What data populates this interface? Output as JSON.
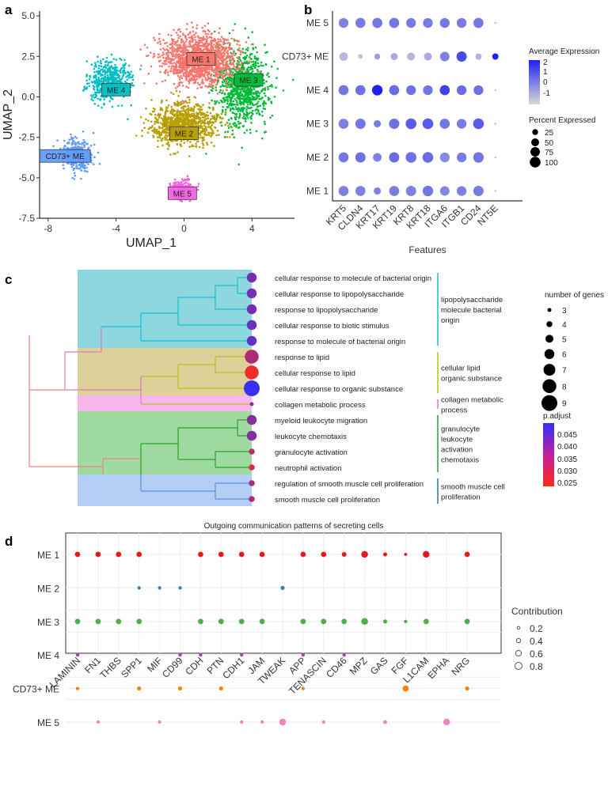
{
  "panel_letters": [
    "a",
    "b",
    "c",
    "d"
  ],
  "colors": {
    "me1": "#f8766d",
    "me2": "#b79f00",
    "me3": "#00ba38",
    "me4": "#00bfc4",
    "cd73": "#619cff",
    "me5": "#f564e3",
    "d_me1": "#e41a1c",
    "d_me2": "#377eb8",
    "d_me3": "#4daf4a",
    "d_me4": "#984ea3",
    "d_cd73": "#ff7f00",
    "d_me5": "#f781bf"
  },
  "chart_data": [
    {
      "id": "a",
      "type": "scatter",
      "title": "",
      "xlabel": "UMAP_1",
      "ylabel": "UMAP_2",
      "xlim": [
        -8.5,
        6.5
      ],
      "ylim": [
        -7.5,
        5.3
      ],
      "xticks": [
        "-8",
        "-4",
        "0",
        "4"
      ],
      "yticks": [
        "5.0",
        "2.5",
        "0.0",
        "-2.5",
        "-5.0",
        "-7.5"
      ],
      "clusters": [
        {
          "name": "ME 1",
          "label_pos": [
            1.0,
            2.3
          ],
          "center": [
            0.9,
            2.3
          ]
        },
        {
          "name": "ME 2",
          "label_pos": [
            0.0,
            -2.3
          ],
          "center": [
            0.0,
            -1.8
          ]
        },
        {
          "name": "ME 3",
          "label_pos": [
            3.8,
            1.0
          ],
          "center": [
            3.4,
            0.5
          ]
        },
        {
          "name": "ME 4",
          "label_pos": [
            -4.0,
            0.4
          ],
          "center": [
            -4.5,
            1.0
          ]
        },
        {
          "name": "CD73+ ME",
          "label_pos": [
            -7.0,
            -3.7
          ],
          "center": [
            -6.2,
            -3.6
          ]
        },
        {
          "name": "ME 5",
          "label_pos": [
            -0.1,
            -6.0
          ],
          "center": [
            -0.1,
            -5.7
          ]
        }
      ]
    },
    {
      "id": "b",
      "type": "dotplot",
      "xlabel": "Features",
      "features": [
        "KRT5",
        "CLDN4",
        "KRT17",
        "KRT19",
        "KRT8",
        "KRT18",
        "ITGA6",
        "ITGB1",
        "CD24",
        "NT5E"
      ],
      "groups": [
        "ME 5",
        "CD73+ ME",
        "ME 4",
        "ME 3",
        "ME 2",
        "ME 1"
      ],
      "avg_expression": [
        [
          0.2,
          0.3,
          0.4,
          0.4,
          0.3,
          0.3,
          0.4,
          0.3,
          0.4,
          -1.0
        ],
        [
          -0.9,
          -1.1,
          -0.4,
          -0.6,
          -0.8,
          -0.6,
          0.2,
          1.2,
          -0.8,
          2.0
        ],
        [
          0.4,
          0.5,
          2.0,
          0.6,
          0.5,
          0.4,
          1.4,
          0.6,
          0.5,
          -1.0
        ],
        [
          0.2,
          0.4,
          0.3,
          0.5,
          0.9,
          0.9,
          0.4,
          0.3,
          0.9,
          -1.0
        ],
        [
          0.4,
          0.5,
          0.2,
          0.6,
          0.5,
          0.6,
          0.0,
          0.3,
          0.4,
          -1.0
        ],
        [
          0.2,
          0.2,
          0.2,
          0.3,
          0.2,
          0.4,
          0.1,
          0.2,
          0.3,
          -1.0
        ]
      ],
      "pct_expressed": [
        [
          80,
          85,
          85,
          85,
          80,
          80,
          80,
          80,
          85,
          1
        ],
        [
          60,
          15,
          25,
          40,
          50,
          50,
          75,
          90,
          30,
          30
        ],
        [
          85,
          85,
          95,
          85,
          80,
          80,
          85,
          80,
          80,
          1
        ],
        [
          85,
          90,
          40,
          90,
          100,
          100,
          85,
          80,
          100,
          1
        ],
        [
          85,
          90,
          60,
          90,
          100,
          100,
          80,
          80,
          95,
          1
        ],
        [
          85,
          85,
          40,
          85,
          90,
          95,
          75,
          80,
          90,
          1
        ]
      ],
      "legend_expression_title": "Average Expression",
      "legend_expression_ticks": [
        "2",
        "1",
        "0",
        "-1"
      ],
      "legend_percent_title": "Percent Expressed",
      "legend_percent_values": [
        "25",
        "50",
        "75",
        "100"
      ]
    },
    {
      "id": "c",
      "type": "dendrogram-dotplot",
      "terms": [
        {
          "name": "cellular response to molecule of bacterial origin",
          "genes": 6,
          "p_adjust": 0.04
        },
        {
          "name": "cellular response to lipopolysaccharide",
          "genes": 6,
          "p_adjust": 0.04
        },
        {
          "name": "response to lipopolysaccharide",
          "genes": 6,
          "p_adjust": 0.04
        },
        {
          "name": "cellular response to biotic stimulus",
          "genes": 6,
          "p_adjust": 0.041
        },
        {
          "name": "response to molecule of bacterial origin",
          "genes": 6,
          "p_adjust": 0.042
        },
        {
          "name": "response to lipid",
          "genes": 8,
          "p_adjust": 0.034
        },
        {
          "name": "cellular response to lipid",
          "genes": 8,
          "p_adjust": 0.026
        },
        {
          "name": "cellular response to organic substance",
          "genes": 9,
          "p_adjust": 0.047
        },
        {
          "name": "collagen metabolic process",
          "genes": 3,
          "p_adjust": 0.037
        },
        {
          "name": "myeloid leukocyte migration",
          "genes": 6,
          "p_adjust": 0.038
        },
        {
          "name": "leukocyte chemotaxis",
          "genes": 6,
          "p_adjust": 0.038
        },
        {
          "name": "granulocyte activation",
          "genes": 4,
          "p_adjust": 0.032
        },
        {
          "name": "neutrophil activation",
          "genes": 4,
          "p_adjust": 0.028
        },
        {
          "name": "regulation of smooth muscle cell proliferation",
          "genes": 4,
          "p_adjust": 0.035
        },
        {
          "name": "smooth muscle cell proliferation",
          "genes": 4,
          "p_adjust": 0.034
        }
      ],
      "groups": [
        {
          "lines": [
            "lipopolysaccharide",
            "molecule bacterial",
            "origin"
          ],
          "rows": [
            0,
            4
          ],
          "color": "#17becf"
        },
        {
          "lines": [
            "cellular lipid",
            "organic substance"
          ],
          "rows": [
            5,
            7
          ],
          "color": "#bcbd22"
        },
        {
          "lines": [
            "collagen metabolic",
            "process"
          ],
          "rows": [
            8,
            8
          ],
          "color": "#e377c2"
        },
        {
          "lines": [
            "granulocyte",
            "leukocyte",
            "activation",
            "chemotaxis"
          ],
          "rows": [
            9,
            12
          ],
          "color": "#2ca02c"
        },
        {
          "lines": [
            "smooth muscle cell",
            "proliferation"
          ],
          "rows": [
            13,
            14
          ],
          "color": "#1f77b4"
        }
      ],
      "legend_size_title": "number of genes",
      "legend_size_values": [
        "3",
        "4",
        "5",
        "6",
        "7",
        "8",
        "9"
      ],
      "legend_color_title": "p.adjust",
      "legend_color_ticks": [
        "0.045",
        "0.040",
        "0.035",
        "0.030",
        "0.025"
      ]
    },
    {
      "id": "d",
      "type": "dotplot",
      "title": "Outgoing communication patterns of secreting cells",
      "pathways": [
        "LAMININ",
        "FN1",
        "THBS",
        "SPP1",
        "MIF",
        "CD99",
        "CDH",
        "PTN",
        "CDH1",
        "JAM",
        "TWEAK",
        "APP",
        "TENASCIN",
        "CD46",
        "MPZ",
        "GAS",
        "FGF",
        "L1CAM",
        "EPHA",
        "NRG"
      ],
      "groups": [
        "ME 1",
        "ME 2",
        "ME 3",
        "ME 4",
        "CD73+ ME",
        "ME 5"
      ],
      "contribution": [
        [
          0.5,
          0.5,
          0.5,
          0.5,
          0,
          0,
          0.5,
          0.5,
          0.5,
          0.5,
          0,
          0.5,
          0.5,
          0.4,
          0.7,
          0.3,
          0.15,
          0.7,
          0,
          0.5
        ],
        [
          0,
          0,
          0,
          0.2,
          0.2,
          0.2,
          0,
          0,
          0,
          0,
          0.3,
          0,
          0,
          0,
          0,
          0,
          0,
          0,
          0,
          0
        ],
        [
          0.5,
          0.5,
          0.5,
          0.5,
          0,
          0,
          0.5,
          0.5,
          0.5,
          0.5,
          0,
          0.5,
          0.5,
          0.5,
          0.7,
          0.3,
          0.2,
          0.5,
          0,
          0.5
        ],
        [
          0.2,
          0,
          0,
          0,
          0,
          0.2,
          0.2,
          0,
          0.2,
          0,
          0,
          0.2,
          0,
          0.2,
          0,
          0,
          0,
          0,
          0,
          0
        ],
        [
          0.2,
          0,
          0,
          0.3,
          0,
          0.3,
          0,
          0.3,
          0,
          0,
          0,
          0.2,
          0,
          0,
          0,
          0,
          0.6,
          0,
          0,
          0.3
        ],
        [
          0,
          0.2,
          0,
          0,
          0.2,
          0,
          0,
          0,
          0.2,
          0.2,
          0.7,
          0,
          0.2,
          0,
          0,
          0.3,
          0,
          0,
          0.7,
          0
        ]
      ],
      "legend_title": "Contribution",
      "legend_values": [
        "0.2",
        "0.4",
        "0.6",
        "0.8"
      ]
    }
  ]
}
